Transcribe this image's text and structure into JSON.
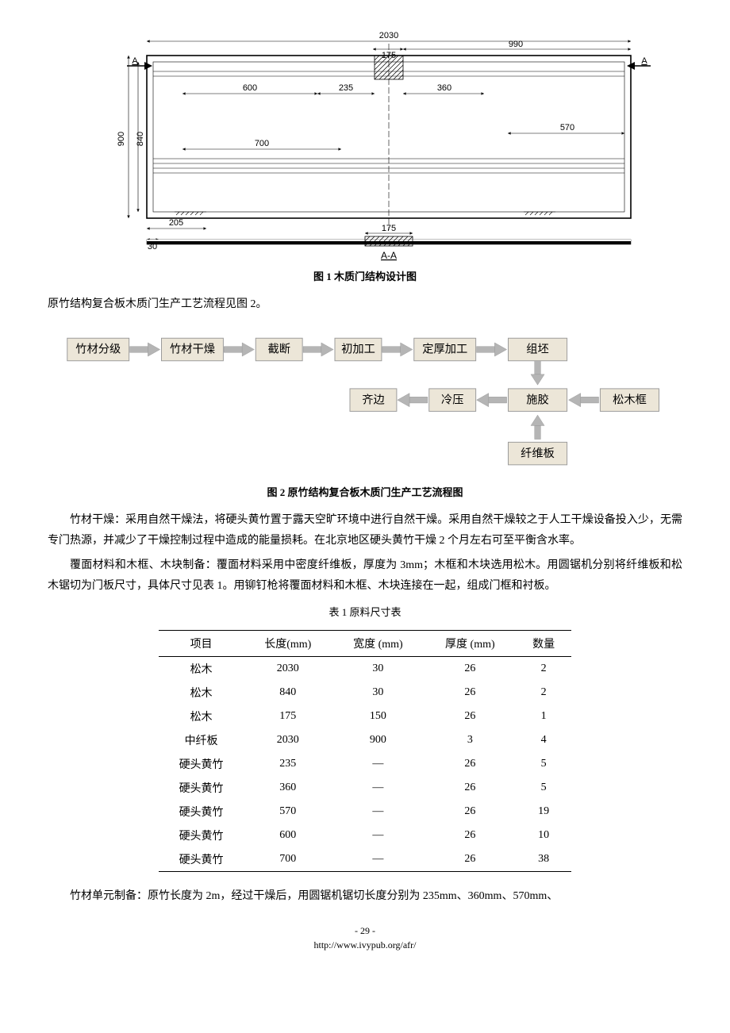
{
  "figure1": {
    "caption": "图 1  木质门结构设计图",
    "section_label": "A-A",
    "marker_A": "A",
    "dimensions": {
      "top_full": "2030",
      "top_small": "175",
      "top_right": "990",
      "mid_left1": "600",
      "mid_left2": "235",
      "mid_right1": "360",
      "mid_right2": "570",
      "mid_far_left": "700",
      "left_h1": "900",
      "left_h2": "840",
      "bottom_left": "205",
      "bottom_far_left": "30",
      "bottom_center": "175"
    }
  },
  "intro_line": "原竹结构复合板木质门生产工艺流程见图 2。",
  "flowchart": {
    "caption": "图 2  原竹结构复合板木质门生产工艺流程图",
    "row1": [
      "竹材分级",
      "竹材干燥",
      "截断",
      "初加工",
      "定厚加工",
      "组坯"
    ],
    "row2_left_to_right": [
      "齐边",
      "冷压",
      "施胶",
      "松木框"
    ],
    "bottom": "纤维板",
    "box_fill": "#ece6d8",
    "box_stroke": "#999999",
    "arrow_fill": "#b5b5b5",
    "arrow_stroke": "#999999",
    "fontsize": 15
  },
  "para1": "竹材干燥：采用自然干燥法，将硬头黄竹置于露天空旷环境中进行自然干燥。采用自然干燥较之于人工干燥设备投入少，无需专门热源，并减少了干燥控制过程中造成的能量损耗。在北京地区硬头黄竹干燥 2 个月左右可至平衡含水率。",
  "para2": "覆面材料和木框、木块制备：覆面材料采用中密度纤维板，厚度为 3mm；木框和木块选用松木。用圆锯机分别将纤维板和松木锯切为门板尺寸，具体尺寸见表 1。用铆钉枪将覆面材料和木框、木块连接在一起，组成门框和衬板。",
  "table1": {
    "caption": "表 1 原料尺寸表",
    "columns": [
      "项目",
      "长度(mm)",
      "宽度 (mm)",
      "厚度 (mm)",
      "数量"
    ],
    "rows": [
      [
        "松木",
        "2030",
        "30",
        "26",
        "2"
      ],
      [
        "松木",
        "840",
        "30",
        "26",
        "2"
      ],
      [
        "松木",
        "175",
        "150",
        "26",
        "1"
      ],
      [
        "中纤板",
        "2030",
        "900",
        "3",
        "4"
      ],
      [
        "硬头黄竹",
        "235",
        "—",
        "26",
        "5"
      ],
      [
        "硬头黄竹",
        "360",
        "—",
        "26",
        "5"
      ],
      [
        "硬头黄竹",
        "570",
        "—",
        "26",
        "19"
      ],
      [
        "硬头黄竹",
        "600",
        "—",
        "26",
        "10"
      ],
      [
        "硬头黄竹",
        "700",
        "—",
        "26",
        "38"
      ]
    ]
  },
  "para3": "竹材单元制备：原竹长度为 2m，经过干燥后，用圆锯机锯切长度分别为 235mm、360mm、570mm、",
  "footer_page": "- 29 -",
  "footer_url": "http://www.ivypub.org/afr/"
}
